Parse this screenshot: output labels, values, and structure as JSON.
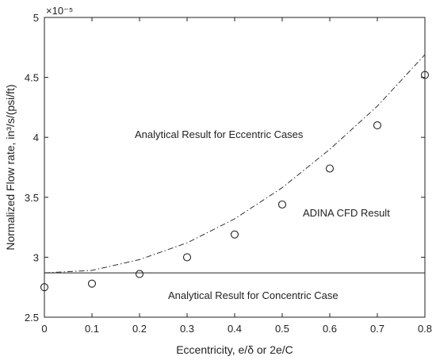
{
  "chart_data": {
    "type": "line",
    "xlabel": "Eccentricity, e/δ or 2e/C",
    "ylabel": "Normalized Flow rate, in³/s/(psi/ft)",
    "y_multiplier": "×10⁻⁵",
    "xlim": [
      0,
      0.8
    ],
    "ylim": [
      2.5,
      5
    ],
    "x_ticks": [
      "0",
      "0.1",
      "0.2",
      "0.3",
      "0.4",
      "0.5",
      "0.6",
      "0.7",
      "0.8"
    ],
    "y_ticks": [
      "2.5",
      "3",
      "3.5",
      "4",
      "4.5",
      "5"
    ],
    "grid": false,
    "series": [
      {
        "x": [
          0,
          0.1,
          0.2,
          0.3,
          0.4,
          0.5,
          0.6,
          0.7,
          0.8
        ],
        "values": [
          2.87,
          2.89,
          2.98,
          3.12,
          3.32,
          3.58,
          3.9,
          4.26,
          4.69
        ],
        "style": "dash-dot",
        "color": "#333333"
      },
      {
        "x": [
          0,
          0.8
        ],
        "values": [
          2.87,
          2.87
        ],
        "style": "solid",
        "color": "#222222"
      },
      {
        "x": [
          0,
          0.1,
          0.2,
          0.3,
          0.4,
          0.5,
          0.6,
          0.7,
          0.8
        ],
        "values": [
          2.75,
          2.78,
          2.86,
          3.0,
          3.19,
          3.44,
          3.74,
          4.1,
          4.52
        ],
        "style": "marker-circle",
        "color": "#222222"
      }
    ],
    "annotations": [
      "Analytical Result for Eccentric Cases",
      "ADINA CFD Result",
      "Analytical Result for Concentric Case"
    ]
  }
}
